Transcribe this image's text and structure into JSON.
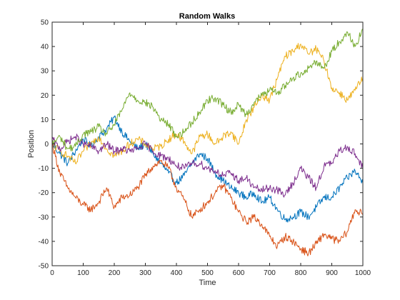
{
  "chart_data": {
    "type": "line",
    "title": "Random Walks",
    "xlabel": "Time",
    "ylabel": "Position",
    "xlim": [
      0,
      1000
    ],
    "ylim": [
      -50,
      50
    ],
    "xticks": [
      0,
      100,
      200,
      300,
      400,
      500,
      600,
      700,
      800,
      900,
      1000
    ],
    "yticks": [
      -50,
      -40,
      -30,
      -20,
      -10,
      0,
      10,
      20,
      30,
      40,
      50
    ],
    "grid": false,
    "legend": "none",
    "series": [
      {
        "color": "#0072BD",
        "x": [
          0,
          25,
          50,
          75,
          100,
          125,
          150,
          175,
          200,
          225,
          250,
          275,
          300,
          325,
          350,
          375,
          400,
          425,
          450,
          475,
          500,
          525,
          550,
          575,
          600,
          625,
          650,
          675,
          700,
          725,
          750,
          775,
          800,
          825,
          850,
          875,
          900,
          925,
          950,
          975,
          1000
        ],
        "y": [
          0,
          -4,
          -8,
          -3,
          2,
          -1,
          3,
          6,
          11,
          5,
          1,
          -2,
          0,
          -4,
          -8,
          -12,
          -16,
          -13,
          -8,
          -4,
          -6,
          -12,
          -15,
          -18,
          -20,
          -22,
          -20,
          -24,
          -22,
          -27,
          -31,
          -30,
          -28,
          -30,
          -26,
          -22,
          -22,
          -18,
          -14,
          -11,
          -16
        ]
      },
      {
        "color": "#D95319",
        "x": [
          0,
          25,
          50,
          75,
          100,
          125,
          150,
          175,
          200,
          225,
          250,
          275,
          300,
          325,
          350,
          375,
          400,
          425,
          450,
          475,
          500,
          525,
          550,
          575,
          600,
          625,
          650,
          675,
          700,
          725,
          750,
          775,
          800,
          825,
          850,
          875,
          900,
          925,
          950,
          975,
          1000
        ],
        "y": [
          0,
          -12,
          -18,
          -22,
          -25,
          -27,
          -24,
          -18,
          -26,
          -22,
          -21,
          -18,
          -13,
          -9,
          -7,
          -10,
          -18,
          -23,
          -30,
          -27,
          -24,
          -20,
          -17,
          -22,
          -28,
          -32,
          -30,
          -33,
          -38,
          -42,
          -38,
          -40,
          -43,
          -45,
          -41,
          -37,
          -39,
          -40,
          -36,
          -27,
          -29
        ]
      },
      {
        "color": "#EDB120",
        "x": [
          0,
          25,
          50,
          75,
          100,
          125,
          150,
          175,
          200,
          225,
          250,
          275,
          300,
          325,
          350,
          375,
          400,
          425,
          450,
          475,
          500,
          525,
          550,
          575,
          600,
          625,
          650,
          675,
          700,
          725,
          750,
          775,
          800,
          825,
          850,
          875,
          900,
          925,
          950,
          975,
          1000
        ],
        "y": [
          0,
          -3,
          -5,
          -8,
          -3,
          0,
          3,
          -2,
          -5,
          -3,
          0,
          2,
          0,
          -2,
          -1,
          2,
          4,
          1,
          -4,
          3,
          4,
          0,
          3,
          5,
          0,
          10,
          15,
          20,
          18,
          27,
          36,
          38,
          41,
          37,
          39,
          34,
          23,
          21,
          18,
          22,
          27
        ]
      },
      {
        "color": "#7E2F8E",
        "x": [
          0,
          25,
          50,
          75,
          100,
          125,
          150,
          175,
          200,
          225,
          250,
          275,
          300,
          325,
          350,
          375,
          400,
          425,
          450,
          475,
          500,
          525,
          550,
          575,
          600,
          625,
          650,
          675,
          700,
          725,
          750,
          775,
          800,
          825,
          850,
          875,
          900,
          925,
          950,
          975,
          1000
        ],
        "y": [
          2,
          -2,
          1,
          3,
          0,
          -1,
          -3,
          0,
          -3,
          -2,
          -3,
          -2,
          0,
          -3,
          -5,
          -6,
          -9,
          -10,
          -8,
          -8,
          -10,
          -11,
          -13,
          -12,
          -15,
          -14,
          -18,
          -19,
          -18,
          -19,
          -21,
          -16,
          -10,
          -14,
          -18,
          -9,
          -8,
          -3,
          -1,
          -4,
          -10
        ]
      },
      {
        "color": "#77AC30",
        "x": [
          0,
          25,
          50,
          75,
          100,
          125,
          150,
          175,
          200,
          225,
          250,
          275,
          300,
          325,
          350,
          375,
          400,
          425,
          450,
          475,
          500,
          525,
          550,
          575,
          600,
          625,
          650,
          675,
          700,
          725,
          750,
          775,
          800,
          825,
          850,
          875,
          900,
          925,
          950,
          975,
          1000
        ],
        "y": [
          0,
          3,
          -2,
          -1,
          4,
          5,
          7,
          4,
          8,
          14,
          21,
          18,
          17,
          15,
          10,
          8,
          3,
          5,
          9,
          13,
          18,
          19,
          16,
          13,
          16,
          12,
          17,
          20,
          22,
          21,
          24,
          27,
          29,
          31,
          34,
          31,
          38,
          42,
          46,
          40,
          47
        ]
      }
    ]
  }
}
